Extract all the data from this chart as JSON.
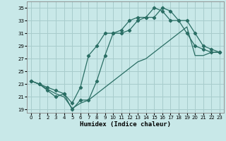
{
  "xlabel": "Humidex (Indice chaleur)",
  "background_color": "#c8e8e8",
  "grid_color": "#a8cccc",
  "line_color": "#2a6e64",
  "xlim": [
    -0.5,
    23.5
  ],
  "ylim": [
    18.5,
    36.0
  ],
  "xticks": [
    0,
    1,
    2,
    3,
    4,
    5,
    6,
    7,
    8,
    9,
    10,
    11,
    12,
    13,
    14,
    15,
    16,
    17,
    18,
    19,
    20,
    21,
    22,
    23
  ],
  "yticks": [
    19,
    21,
    23,
    25,
    27,
    29,
    31,
    33,
    35
  ],
  "line1_x": [
    0,
    1,
    2,
    3,
    4,
    5,
    6,
    7,
    8,
    9,
    10,
    11,
    12,
    13,
    14,
    15,
    16,
    17,
    18,
    19,
    20,
    21,
    22,
    23
  ],
  "line1_y": [
    23.5,
    23.0,
    22.5,
    22.0,
    21.5,
    19.0,
    20.5,
    20.5,
    23.5,
    27.5,
    31.0,
    31.0,
    31.5,
    33.0,
    33.5,
    33.5,
    35.0,
    34.5,
    33.0,
    33.0,
    31.0,
    29.0,
    28.5,
    28.0
  ],
  "line2_x": [
    0,
    1,
    2,
    3,
    4,
    5,
    6,
    7,
    8,
    9,
    10,
    11,
    12,
    13,
    14,
    15,
    16,
    17,
    18,
    19,
    20,
    21,
    22,
    23
  ],
  "line2_y": [
    23.5,
    23.0,
    22.0,
    21.0,
    21.5,
    20.0,
    22.5,
    27.5,
    29.0,
    31.0,
    31.0,
    31.5,
    33.0,
    33.5,
    33.5,
    35.0,
    34.5,
    33.0,
    33.0,
    31.0,
    29.0,
    28.5,
    28.0,
    28.0
  ],
  "line3_x": [
    0,
    1,
    2,
    3,
    4,
    5,
    6,
    7,
    8,
    9,
    10,
    11,
    12,
    13,
    14,
    15,
    16,
    17,
    18,
    19,
    20,
    21,
    22,
    23
  ],
  "line3_y": [
    23.5,
    23.0,
    22.2,
    21.5,
    21.0,
    19.2,
    20.0,
    20.5,
    21.5,
    22.5,
    23.5,
    24.5,
    25.5,
    26.5,
    27.0,
    28.0,
    29.0,
    30.0,
    31.0,
    32.0,
    27.5,
    27.5,
    28.0,
    28.0
  ]
}
